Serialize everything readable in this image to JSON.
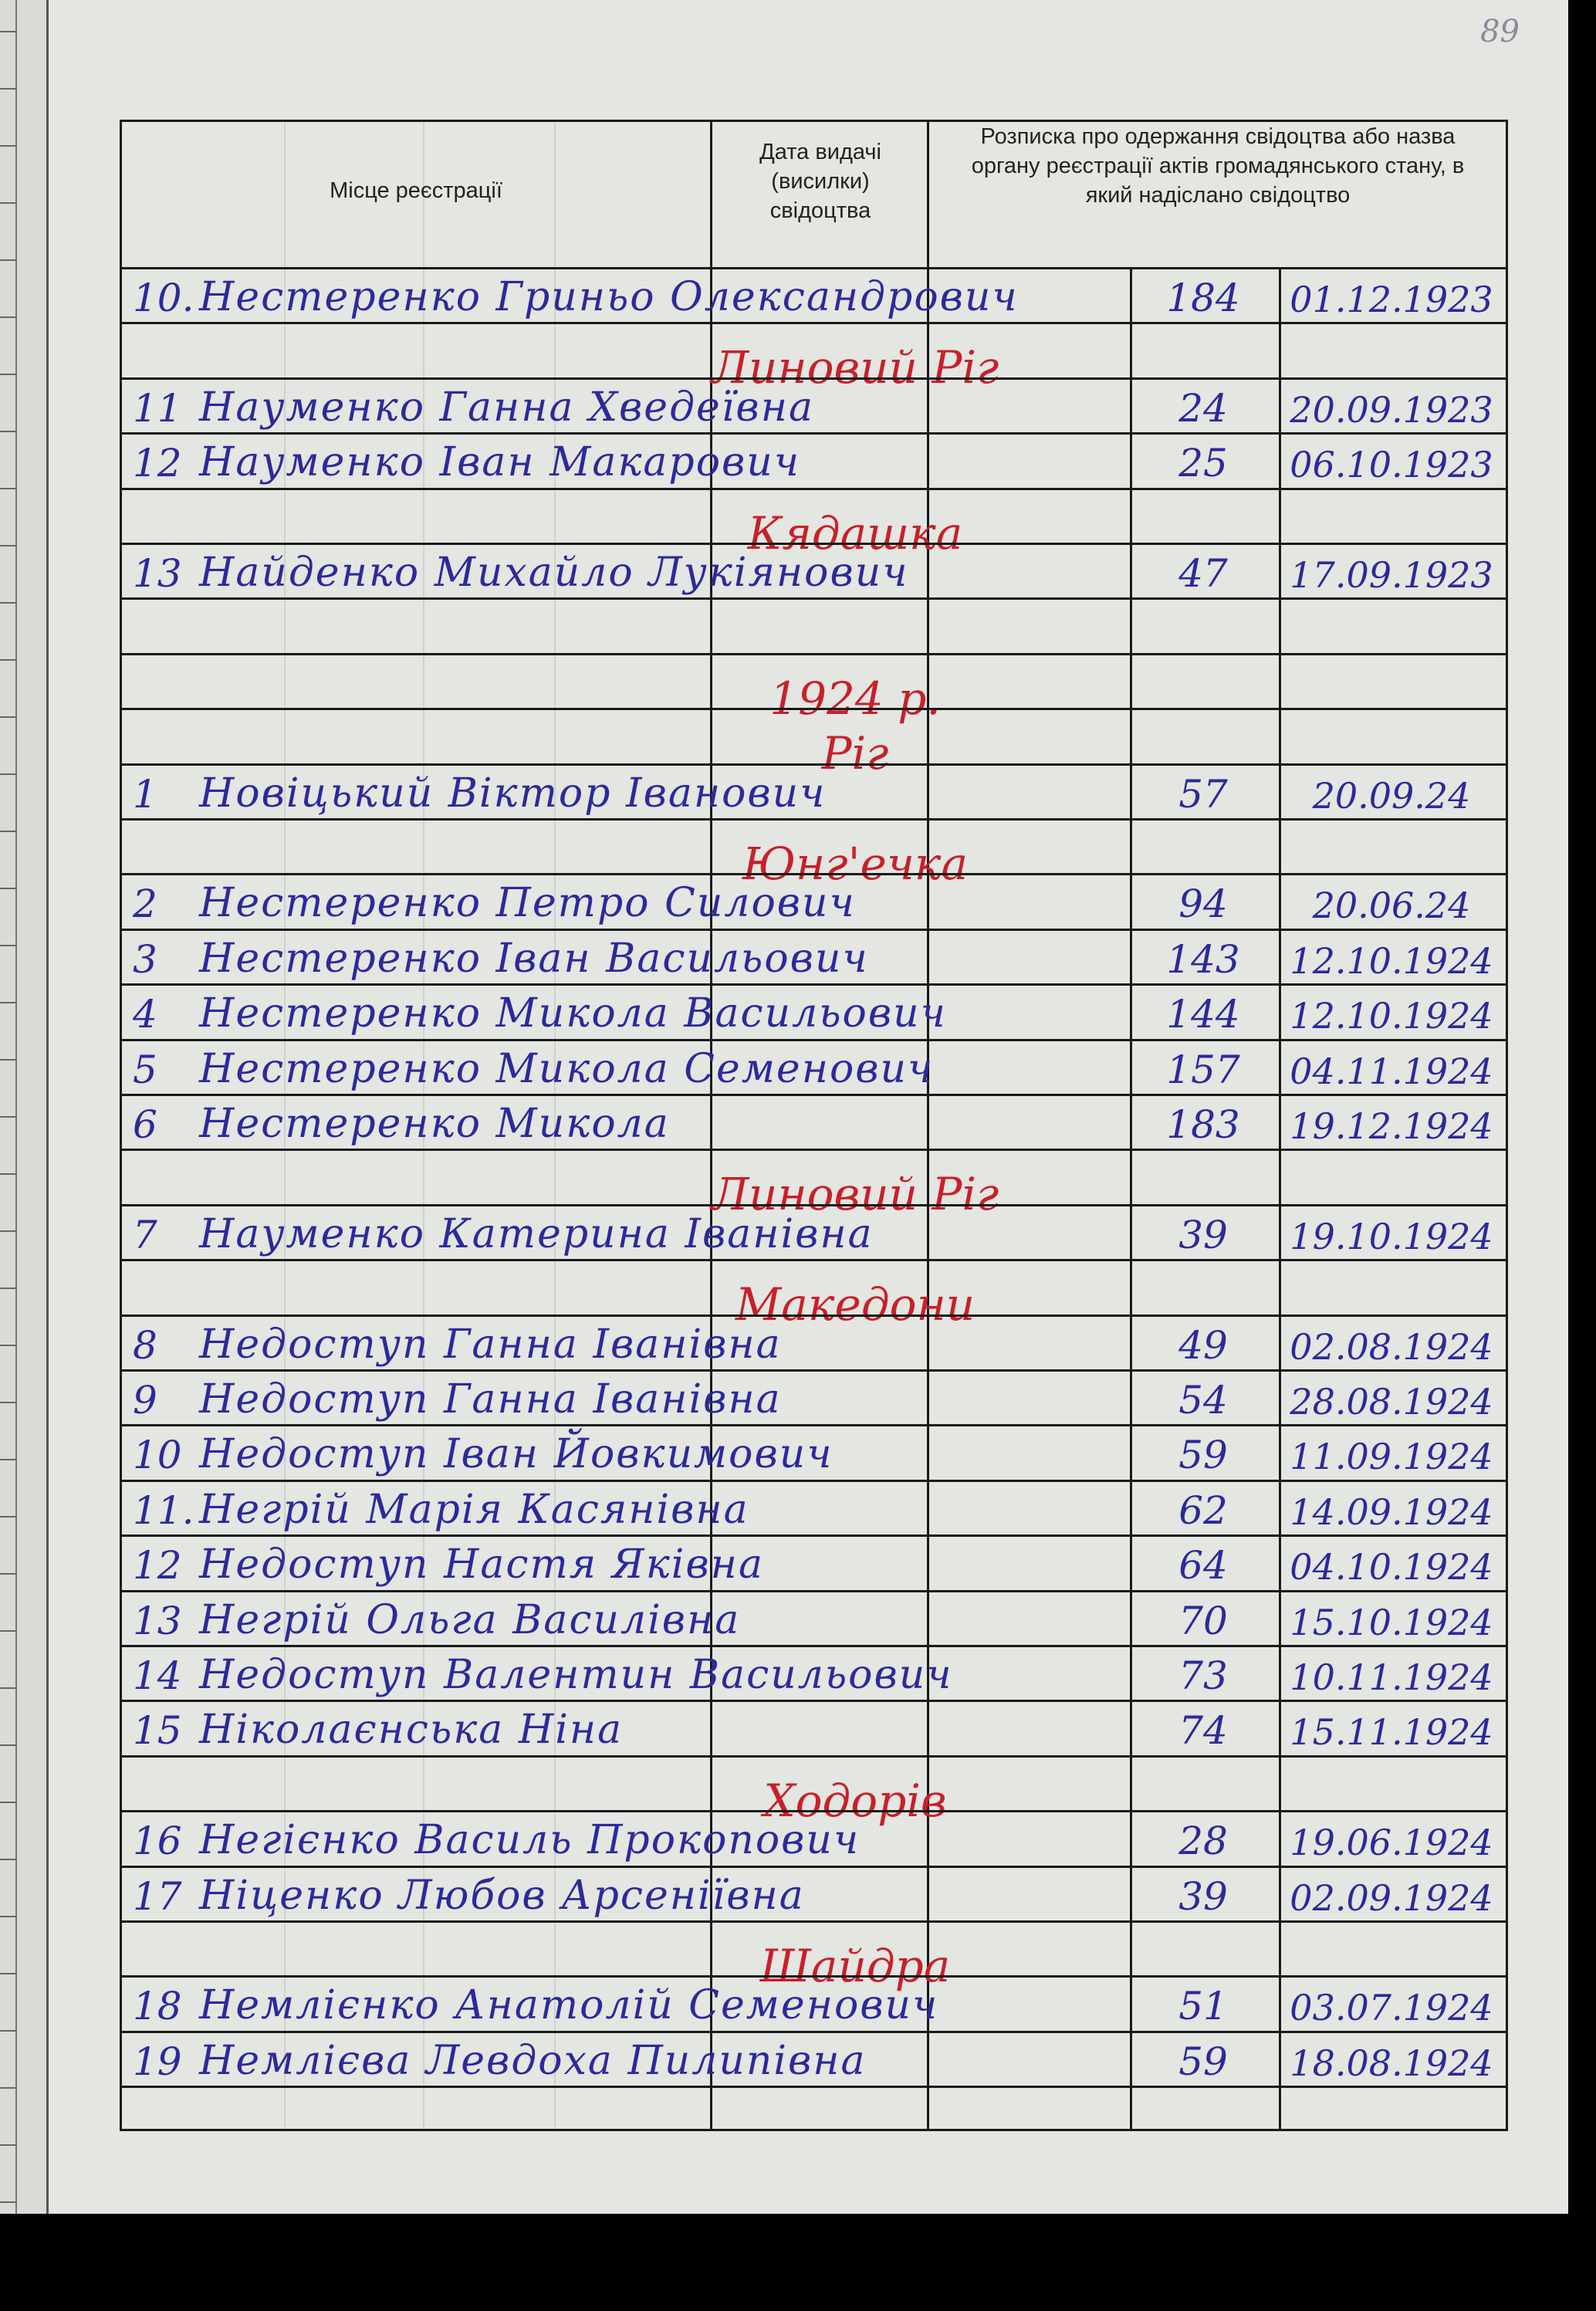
{
  "page_number": "89",
  "header": {
    "place": "Місце реєстрації",
    "date_issued": "Дата видачі (висилки) свідоцтва",
    "receipt": "Розписка про одержання свідоцтва або назва органу реєстрації актів громадянського стану, в який надіслано свідоцтво"
  },
  "colors": {
    "ink_blue": "#2b2a9c",
    "ink_red": "#c8202a",
    "paper": "#e4e6e2"
  },
  "rows": [
    {
      "num": "10.",
      "name": "Нестеренко Гриньо Олександрович",
      "record": "184",
      "date": "01.12.1923"
    },
    {
      "heading": "Линовий Ріг"
    },
    {
      "num": "11",
      "name": "Науменко Ганна Хведеївна",
      "record": "24",
      "date": "20.09.1923"
    },
    {
      "num": "12",
      "name": "Науменко Іван Макарович",
      "record": "25",
      "date": "06.10.1923"
    },
    {
      "heading": "Кядашка"
    },
    {
      "num": "13",
      "name": "Найденко Михайло Лукіянович",
      "record": "47",
      "date": "17.09.1923"
    },
    {},
    {
      "heading": "1924 р."
    },
    {
      "heading": "Ріг"
    },
    {
      "num": "1",
      "name": "Новіцький Віктор Іванович",
      "record": "57",
      "date": "20.09.24"
    },
    {
      "heading": "Юнг'ечка"
    },
    {
      "num": "2",
      "name": "Нестеренко Петро Силович",
      "record": "94",
      "date": "20.06.24"
    },
    {
      "num": "3",
      "name": "Нестеренко Іван Васильович",
      "record": "143",
      "date": "12.10.1924"
    },
    {
      "num": "4",
      "name": "Нестеренко Микола Васильович",
      "record": "144",
      "date": "12.10.1924"
    },
    {
      "num": "5",
      "name": "Нестеренко Микола Семенович",
      "record": "157",
      "date": "04.11.1924"
    },
    {
      "num": "6",
      "name": "Нестеренко Микола",
      "record": "183",
      "date": "19.12.1924"
    },
    {
      "heading": "Линовий Ріг"
    },
    {
      "num": "7",
      "name": "Науменко Катерина Іванівна",
      "record": "39",
      "date": "19.10.1924"
    },
    {
      "heading": "Македони"
    },
    {
      "num": "8",
      "name": "Недоступ Ганна Іванівна",
      "record": "49",
      "date": "02.08.1924"
    },
    {
      "num": "9",
      "name": "Недоступ Ганна Іванівна",
      "record": "54",
      "date": "28.08.1924"
    },
    {
      "num": "10",
      "name": "Недоступ Іван Йовкимович",
      "record": "59",
      "date": "11.09.1924"
    },
    {
      "num": "11.",
      "name": "Негрій Марія Касянівна",
      "record": "62",
      "date": "14.09.1924"
    },
    {
      "num": "12",
      "name": "Недоступ Настя Яківна",
      "record": "64",
      "date": "04.10.1924"
    },
    {
      "num": "13",
      "name": "Негрій Ольга Василівна",
      "record": "70",
      "date": "15.10.1924"
    },
    {
      "num": "14",
      "name": "Недоступ Валентин Васильович",
      "record": "73",
      "date": "10.11.1924"
    },
    {
      "num": "15",
      "name": "Ніколаєнська Ніна",
      "record": "74",
      "date": "15.11.1924"
    },
    {
      "heading": "Ходорів"
    },
    {
      "num": "16",
      "name": "Негієнко Василь Прокопович",
      "record": "28",
      "date": "19.06.1924"
    },
    {
      "num": "17",
      "name": "Ніценко Любов Арсеніївна",
      "record": "39",
      "date": "02.09.1924"
    },
    {
      "heading": "Шайдра"
    },
    {
      "num": "18",
      "name": "Немлієнко Анатолій Семенович",
      "record": "51",
      "date": "03.07.1924"
    },
    {
      "num": "19",
      "name": "Немлієва Левдоха Пилипівна",
      "record": "59",
      "date": "18.08.1924"
    }
  ]
}
